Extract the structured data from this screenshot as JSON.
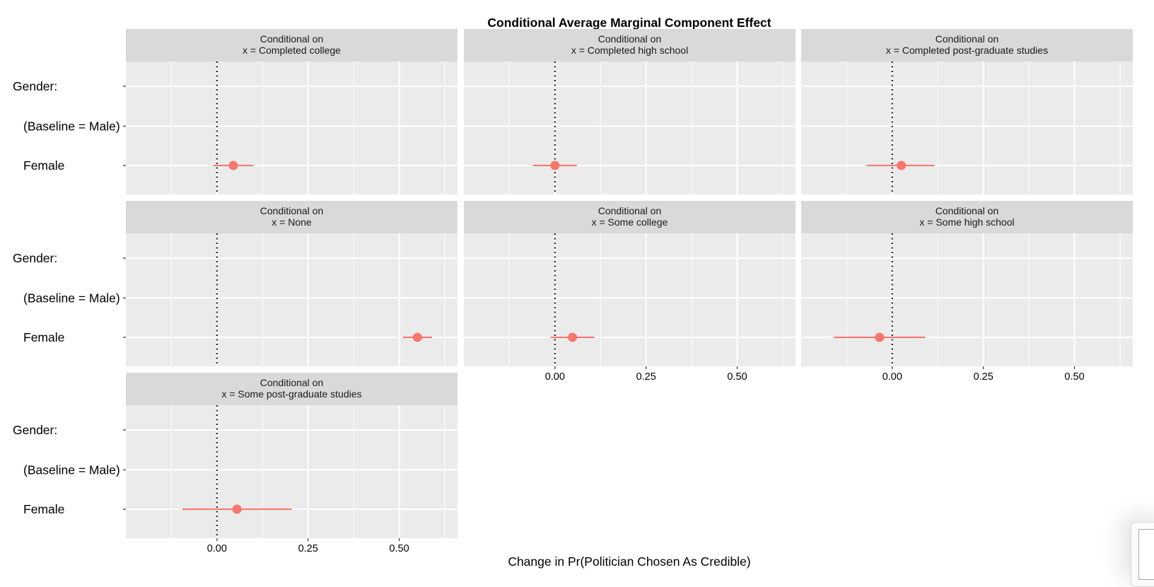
{
  "chart_data": {
    "type": "scatter",
    "subtype": "faceted point-range (coefficient) plot",
    "title": "Conditional Average Marginal Component Effect",
    "xlabel": "Change in Pr(Politician Chosen As Credible)",
    "ylabel": "",
    "xlim": [
      -0.25,
      0.66
    ],
    "xticks": [
      0.0,
      0.25,
      0.5
    ],
    "xtick_labels": [
      "0.00",
      "0.25",
      "0.50"
    ],
    "y_categories": [
      "Gender:",
      "(Baseline = Male)",
      "Female"
    ],
    "reference_line": {
      "x": 0,
      "style": "dotted"
    },
    "grid": true,
    "legend": "none",
    "colors": {
      "point": "#F8766D",
      "panel_bg": "#EBEBEB",
      "strip_bg": "#D9D9D9",
      "grid": "#FFFFFF",
      "reference": "#222222"
    },
    "strip_prefix": "Conditional on",
    "facets": [
      {
        "label": "x = Completed college",
        "category": "Female",
        "estimate": 0.045,
        "ci": [
          -0.01,
          0.1
        ]
      },
      {
        "label": "x = Completed high school",
        "category": "Female",
        "estimate": 0.0,
        "ci": [
          -0.06,
          0.06
        ]
      },
      {
        "label": "x = Completed post-graduate studies",
        "category": "Female",
        "estimate": 0.025,
        "ci": [
          -0.07,
          0.115
        ]
      },
      {
        "label": "x = None",
        "category": "Female",
        "estimate": 0.55,
        "ci": [
          0.51,
          0.59
        ]
      },
      {
        "label": "x = Some college",
        "category": "Female",
        "estimate": 0.048,
        "ci": [
          -0.012,
          0.108
        ]
      },
      {
        "label": "x = Some high school",
        "category": "Female",
        "estimate": -0.035,
        "ci": [
          -0.16,
          0.09
        ]
      },
      {
        "label": "x = Some post-graduate studies",
        "category": "Female",
        "estimate": 0.055,
        "ci": [
          -0.095,
          0.205
        ]
      }
    ]
  }
}
